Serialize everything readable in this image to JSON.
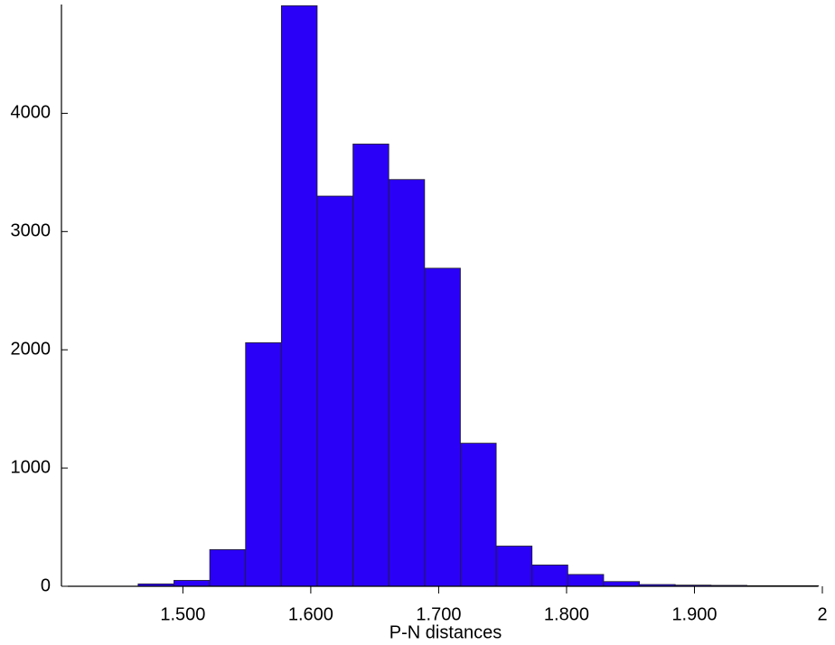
{
  "chart_data": {
    "type": "histogram",
    "x_label": "P-N distances",
    "bins": [
      1.465,
      1.493,
      1.521,
      1.549,
      1.577,
      1.605,
      1.633,
      1.661,
      1.689,
      1.717,
      1.745,
      1.773,
      1.801,
      1.829,
      1.857,
      1.885,
      1.913,
      1.941,
      1.969,
      1.997
    ],
    "values": [
      20,
      50,
      310,
      2060,
      4910,
      3300,
      3740,
      3440,
      2690,
      1210,
      340,
      180,
      100,
      40,
      15,
      10,
      8,
      5,
      5
    ],
    "color": "#2b00f7",
    "xlim": [
      1.41,
      2.0
    ],
    "xticks": [
      {
        "value": 1.5,
        "label": "1.500"
      },
      {
        "value": 1.6,
        "label": "1.600"
      },
      {
        "value": 1.7,
        "label": "1.700"
      },
      {
        "value": 1.8,
        "label": "1.800"
      },
      {
        "value": 1.9,
        "label": "1.900"
      },
      2
    ],
    "ylim": [
      0,
      4920
    ],
    "yticks": [
      0,
      1000,
      2000,
      3000,
      4000
    ]
  }
}
